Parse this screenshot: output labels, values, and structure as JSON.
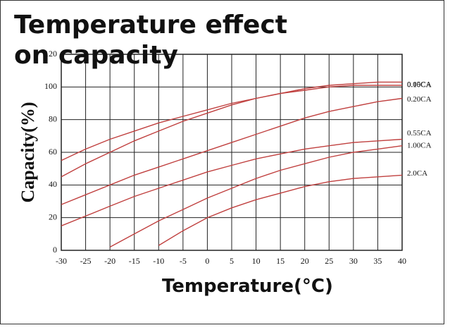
{
  "chart_data": {
    "type": "line",
    "title": "Temperature effect on capacity",
    "x_label": "Temperature(°C)",
    "y_label": "Capacity(%)",
    "x": [
      -30,
      -25,
      -20,
      -15,
      -10,
      -5,
      0,
      5,
      10,
      15,
      20,
      25,
      30,
      35,
      40
    ],
    "xlim": [
      -30,
      40
    ],
    "xticks": [
      -30,
      -25,
      -20,
      -15,
      -10,
      -5,
      0,
      5,
      10,
      15,
      20,
      25,
      30,
      35,
      40
    ],
    "ylim": [
      0,
      120
    ],
    "yticks": [
      0,
      20,
      40,
      60,
      80,
      100,
      120
    ],
    "grid": true,
    "series": [
      {
        "name": "0.05CA",
        "color": "#c0403f",
        "values": [
          55,
          62,
          68,
          73,
          78,
          82,
          86,
          90,
          93,
          96,
          99,
          101,
          102,
          103,
          103
        ]
      },
      {
        "name": "0.10CA",
        "color": "#c0403f",
        "values": [
          45,
          53,
          60,
          67,
          73,
          79,
          84,
          89,
          93,
          96,
          98,
          100,
          101,
          101,
          101
        ]
      },
      {
        "name": "0.20CA",
        "color": "#c0403f",
        "values": [
          28,
          34,
          40,
          46,
          51,
          56,
          61,
          66,
          71,
          76,
          81,
          85,
          88,
          91,
          93
        ]
      },
      {
        "name": "0.55CA",
        "color": "#c0403f",
        "values": [
          15,
          21,
          27,
          33,
          38,
          43,
          48,
          52,
          56,
          59,
          62,
          64,
          66,
          67,
          68
        ]
      },
      {
        "name": "1.00CA",
        "color": "#c0403f",
        "values": [
          null,
          null,
          2,
          10,
          18,
          25,
          32,
          38,
          44,
          49,
          53,
          57,
          60,
          62,
          64
        ]
      },
      {
        "name": "2.0CA",
        "color": "#c0403f",
        "values": [
          null,
          null,
          null,
          null,
          3,
          12,
          20,
          26,
          31,
          35,
          39,
          42,
          44,
          45,
          46
        ]
      }
    ]
  }
}
